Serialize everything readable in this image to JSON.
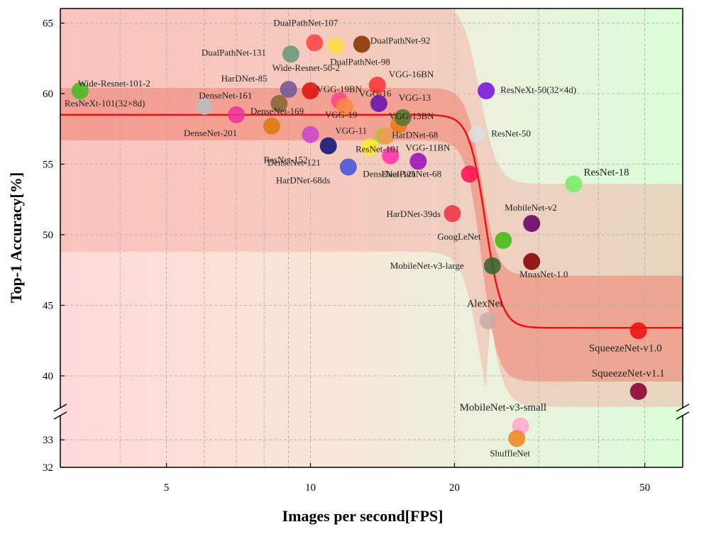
{
  "chart_data": {
    "type": "scatter",
    "xlabel": "Images per second[FPS]",
    "ylabel": "Top-1 Accuracy[%]",
    "x_scale": "log",
    "xlim": [
      3.0,
      60.0
    ],
    "ylim": [
      32,
      66
    ],
    "y_axis_break": [
      34,
      38
    ],
    "x_ticks": [
      5,
      10,
      20,
      50
    ],
    "y_ticks": [
      32,
      33,
      40,
      45,
      50,
      55,
      60,
      65
    ],
    "grid": true,
    "points": [
      {
        "name": "ResNeXt-101(32×8d)",
        "x": 3.3,
        "y": 60.2,
        "color": "#44bb22"
      },
      {
        "name": "Wide-Resnet-101-2",
        "x": 6.0,
        "y": 59.1,
        "color": "#bbbbbb"
      },
      {
        "name": "DenseNet-201",
        "x": 7.0,
        "y": 58.5,
        "color": "#ee3399"
      },
      {
        "name": "DenseNet-169",
        "x": 8.3,
        "y": 57.7,
        "color": "#dd7711"
      },
      {
        "name": "DenseNet-161",
        "x": 8.6,
        "y": 59.3,
        "color": "#886633"
      },
      {
        "name": "HarDNet-85",
        "x": 9.0,
        "y": 60.3,
        "color": "#775599"
      },
      {
        "name": "DualPathNet-131",
        "x": 9.1,
        "y": 62.8,
        "color": "#669977"
      },
      {
        "name": "Wide-Resnet-50-2",
        "x": 10.0,
        "y": 60.2,
        "color": "#dd1111"
      },
      {
        "name": "ResNet-152",
        "x": 10.0,
        "y": 57.1,
        "color": "#cc44cc"
      },
      {
        "name": "DualPathNet-107",
        "x": 10.2,
        "y": 63.6,
        "color": "#ff4444"
      },
      {
        "name": "DenseNet-121",
        "x": 10.9,
        "y": 56.3,
        "color": "#111177"
      },
      {
        "name": "DualPathNet-98",
        "x": 11.3,
        "y": 63.4,
        "color": "#ffdd44"
      },
      {
        "name": "VGG-19BN",
        "x": 11.5,
        "y": 59.5,
        "color": "#ff4488"
      },
      {
        "name": "VGG-19",
        "x": 11.8,
        "y": 59.1,
        "color": "#ff8844"
      },
      {
        "name": "HarDNet-68ds",
        "x": 12.0,
        "y": 54.8,
        "color": "#4455dd"
      },
      {
        "name": "DualPathNet-92",
        "x": 12.8,
        "y": 63.5,
        "color": "#883300"
      },
      {
        "name": "ResNet-101",
        "x": 13.3,
        "y": 56.2,
        "color": "#ffee22"
      },
      {
        "name": "VGG-16BN",
        "x": 13.8,
        "y": 60.6,
        "color": "#ff3333"
      },
      {
        "name": "VGG-16",
        "x": 13.9,
        "y": 59.3,
        "color": "#6611aa"
      },
      {
        "name": "VGG-11",
        "x": 14.2,
        "y": 57.0,
        "color": "#aacc22"
      },
      {
        "name": "HarDNet-68",
        "x": 14.4,
        "y": 57.0,
        "color": "#ee9955"
      },
      {
        "name": "DenseNet-121",
        "x": 14.7,
        "y": 55.6,
        "color": "#ff33aa"
      },
      {
        "name": "VGG-13BN",
        "x": 15.3,
        "y": 57.8,
        "color": "#ee7711"
      },
      {
        "name": "VGG-13",
        "x": 15.6,
        "y": 58.3,
        "color": "#557733"
      },
      {
        "name": "VGG-11BN",
        "x": 16.8,
        "y": 55.2,
        "color": "#9911bb"
      },
      {
        "name": "HarDNet-39ds",
        "x": 19.8,
        "y": 51.5,
        "color": "#ee3344"
      },
      {
        "name": "DualPathNet-68",
        "x": 21.5,
        "y": 54.3,
        "color": "#ff1155"
      },
      {
        "name": "ResNet-50",
        "x": 22.3,
        "y": 57.1,
        "color": "#dddddd"
      },
      {
        "name": "ResNeXt-50(32×4d)",
        "x": 23.3,
        "y": 60.2,
        "color": "#7711dd"
      },
      {
        "name": "AlexNet",
        "x": 23.5,
        "y": 43.9,
        "color": "#ccaaaa"
      },
      {
        "name": "MobileNet-v3-large",
        "x": 24.0,
        "y": 47.8,
        "color": "#336633"
      },
      {
        "name": "GoogLeNet",
        "x": 25.3,
        "y": 49.6,
        "color": "#44bb11"
      },
      {
        "name": "MobileNet-v3-small",
        "x": 27.5,
        "y": 33.5,
        "color": "#ffaacc"
      },
      {
        "name": "ShuffleNet",
        "x": 27.0,
        "y": 33.05,
        "color": "#ee8822"
      },
      {
        "name": "MobileNet-v2",
        "x": 29.0,
        "y": 50.8,
        "color": "#660066"
      },
      {
        "name": "MnasNet-1.0",
        "x": 29.0,
        "y": 48.1,
        "color": "#880000"
      },
      {
        "name": "ResNet-18",
        "x": 35.5,
        "y": 53.6,
        "color": "#77ee66"
      },
      {
        "name": "SqueezeNet-v1.0",
        "x": 48.5,
        "y": 43.2,
        "color": "#ee1111"
      },
      {
        "name": "SqueezeNet-v1.1",
        "x": 48.5,
        "y": 38.9,
        "color": "#880033"
      }
    ]
  }
}
